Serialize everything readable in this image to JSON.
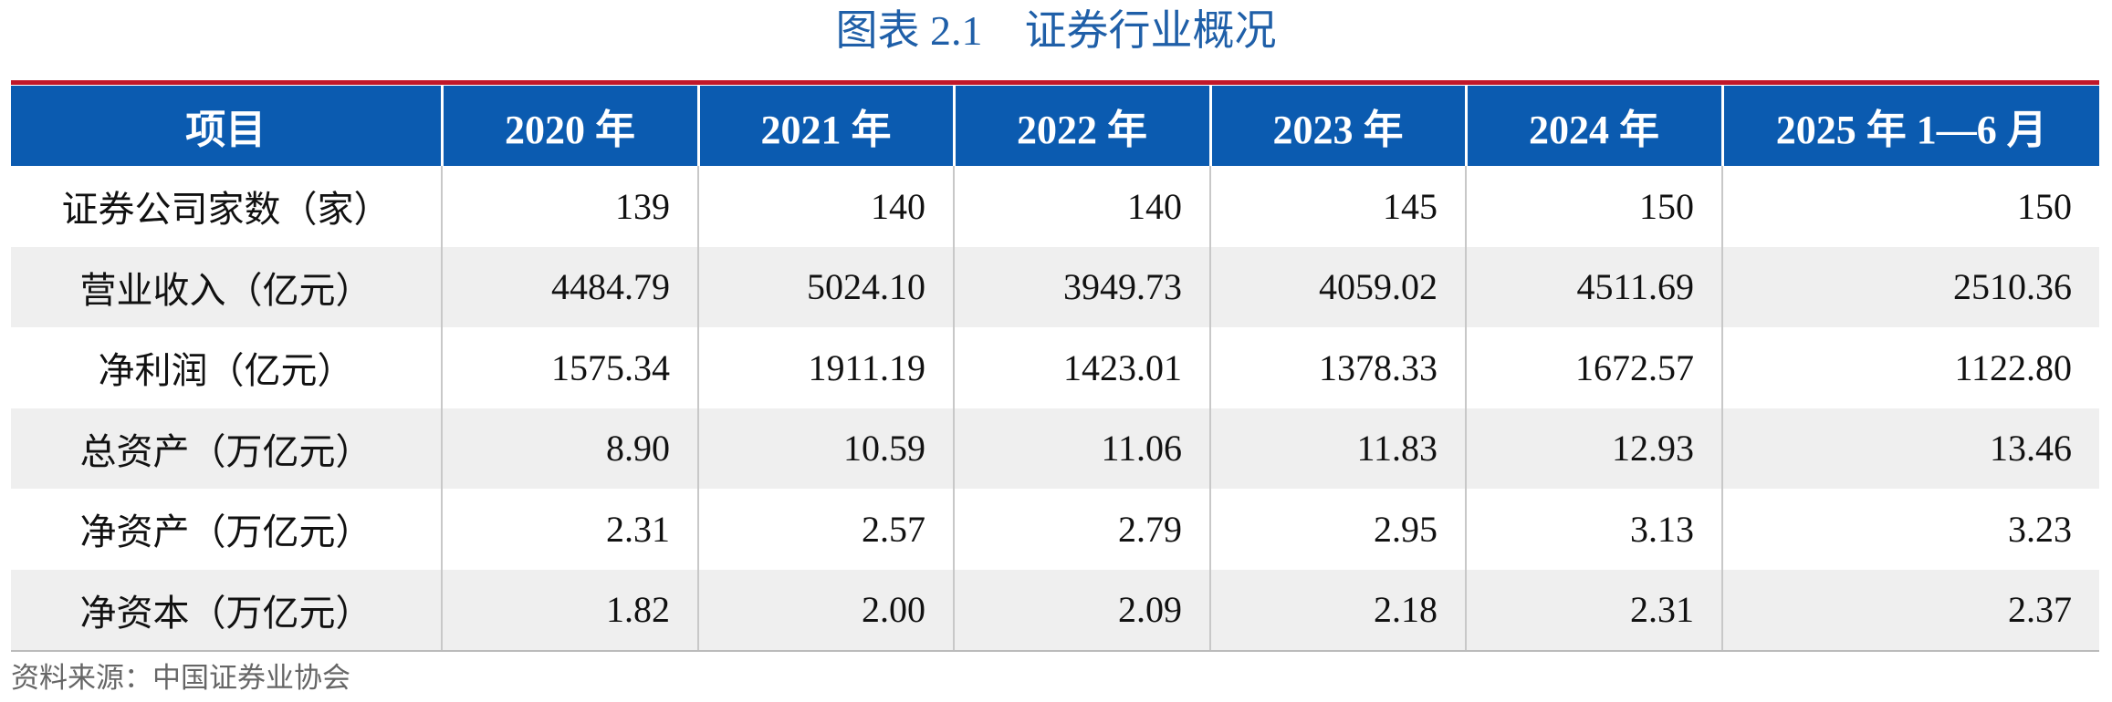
{
  "header": {
    "title": "图表 2.1　证券行业概况"
  },
  "table": {
    "columns": [
      "项目",
      "2020 年",
      "2021 年",
      "2022 年",
      "2023 年",
      "2024 年",
      "2025 年 1—6 月"
    ],
    "rows": [
      [
        "证券公司家数（家）",
        "139",
        "140",
        "140",
        "145",
        "150",
        "150"
      ],
      [
        "营业收入（亿元）",
        "4484.79",
        "5024.10",
        "3949.73",
        "4059.02",
        "4511.69",
        "2510.36"
      ],
      [
        "净利润（亿元）",
        "1575.34",
        "1911.19",
        "1423.01",
        "1378.33",
        "1672.57",
        "1122.80"
      ],
      [
        "总资产（万亿元）",
        "8.90",
        "10.59",
        "11.06",
        "11.83",
        "12.93",
        "13.46"
      ],
      [
        "净资产（万亿元）",
        "2.31",
        "2.57",
        "2.79",
        "2.95",
        "3.13",
        "3.23"
      ],
      [
        "净资本（万亿元）",
        "1.82",
        "2.00",
        "2.09",
        "2.18",
        "2.31",
        "2.37"
      ]
    ]
  },
  "source": "资料来源：中国证券业协会"
}
